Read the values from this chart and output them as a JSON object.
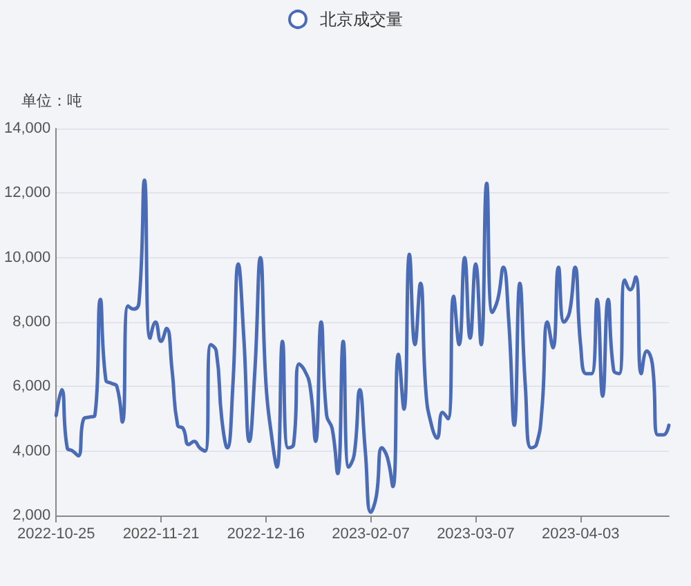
{
  "chart_data": {
    "type": "line",
    "ylabel": "单位：吨",
    "legend": "top",
    "grid": "y",
    "marker": "none",
    "line_style": "solid",
    "categories": [
      "2022-10-25",
      null,
      null,
      null,
      null,
      null,
      null,
      null,
      null,
      null,
      null,
      null,
      null,
      null,
      null,
      null,
      null,
      null,
      null,
      "2022-11-21",
      null,
      null,
      null,
      null,
      null,
      null,
      null,
      null,
      null,
      null,
      null,
      null,
      null,
      null,
      null,
      null,
      null,
      null,
      "2022-12-16",
      null,
      null,
      null,
      null,
      null,
      null,
      null,
      null,
      null,
      null,
      null,
      null,
      null,
      null,
      null,
      null,
      null,
      null,
      "2023-02-07",
      null,
      null,
      null,
      null,
      null,
      null,
      null,
      null,
      null,
      null,
      null,
      null,
      null,
      null,
      null,
      null,
      null,
      null,
      "2023-03-07",
      null,
      null,
      null,
      null,
      null,
      null,
      null,
      null,
      null,
      null,
      null,
      null,
      null,
      null,
      null,
      null,
      null,
      null,
      "2023-04-03",
      null,
      null,
      null,
      null,
      null,
      null,
      null,
      null,
      null,
      null,
      null,
      null,
      null,
      null,
      null,
      null
    ],
    "ylim": [
      2000,
      14000
    ],
    "yticks": [
      {
        "value": 2000,
        "label": "2,000"
      },
      {
        "value": 4000,
        "label": "4,000"
      },
      {
        "value": 6000,
        "label": "6,000"
      },
      {
        "value": 8000,
        "label": "8,000"
      },
      {
        "value": 10000,
        "label": "10,000"
      },
      {
        "value": 12000,
        "label": "12,000"
      },
      {
        "value": 14000,
        "label": "14,000"
      }
    ],
    "series": [
      {
        "name": "北京成交量",
        "color": "#4a6bb6",
        "values": [
          5100,
          5900,
          4100,
          4000,
          3850,
          5000,
          5050,
          5100,
          8700,
          6200,
          6100,
          6000,
          4900,
          8500,
          8400,
          8600,
          12400,
          7500,
          8000,
          7400,
          7800,
          6500,
          4800,
          4700,
          4200,
          4300,
          4100,
          4000,
          7300,
          7100,
          5000,
          4100,
          6000,
          9800,
          7500,
          4300,
          6500,
          10000,
          6100,
          4500,
          3500,
          7400,
          4100,
          4200,
          6700,
          6500,
          6000,
          4300,
          8000,
          5100,
          4700,
          3300,
          7400,
          3500,
          3900,
          5900,
          4000,
          2100,
          2600,
          4100,
          3800,
          2900,
          7000,
          5300,
          10100,
          7300,
          9200,
          5800,
          4800,
          4400,
          5200,
          5000,
          8800,
          7300,
          10000,
          7500,
          9800,
          7300,
          12300,
          8300,
          8700,
          9700,
          8000,
          4800,
          9200,
          6000,
          4100,
          4200,
          5300,
          8000,
          7200,
          9700,
          8000,
          8300,
          9700,
          7300,
          6400,
          6400,
          8700,
          5700,
          8700,
          6500,
          6400,
          9300,
          9000,
          9400,
          6400,
          7100,
          6700,
          4500,
          4500,
          4800
        ]
      }
    ]
  }
}
